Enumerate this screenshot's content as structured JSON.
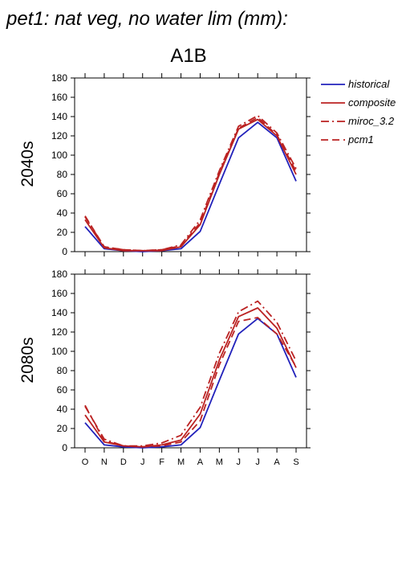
{
  "title": "pet1: nat veg, no water lim (mm):",
  "scenario": "A1B",
  "colors": {
    "historical": "#2222bb",
    "model": "#bb2222",
    "axis": "#000000"
  },
  "chart_data": [
    {
      "type": "line",
      "title": "2040s",
      "ylim": [
        0,
        180
      ],
      "yticks": [
        0,
        20,
        40,
        60,
        80,
        100,
        120,
        140,
        160,
        180
      ],
      "categories": [
        "O",
        "N",
        "D",
        "J",
        "F",
        "M",
        "A",
        "M",
        "J",
        "J",
        "A",
        "S"
      ],
      "series": [
        {
          "name": "historical",
          "style": "solid",
          "color": "#2222bb",
          "values": [
            26,
            3,
            1,
            0,
            1,
            3,
            21,
            70,
            118,
            134,
            118,
            73
          ]
        },
        {
          "name": "composite",
          "style": "solid",
          "color": "#bb2222",
          "values": [
            33,
            4,
            1,
            1,
            1,
            5,
            28,
            80,
            127,
            137,
            120,
            80
          ]
        },
        {
          "name": "miroc_3.2",
          "style": "dashdot",
          "color": "#bb2222",
          "values": [
            36,
            5,
            2,
            1,
            2,
            7,
            33,
            84,
            130,
            141,
            123,
            86
          ]
        },
        {
          "name": "pcm1",
          "style": "dashed",
          "color": "#bb2222",
          "values": [
            37,
            5,
            2,
            1,
            2,
            6,
            30,
            82,
            128,
            139,
            121,
            83
          ]
        }
      ]
    },
    {
      "type": "line",
      "title": "2080s",
      "ylim": [
        0,
        180
      ],
      "yticks": [
        0,
        20,
        40,
        60,
        80,
        100,
        120,
        140,
        160,
        180
      ],
      "categories": [
        "O",
        "N",
        "D",
        "J",
        "F",
        "M",
        "A",
        "M",
        "J",
        "J",
        "A",
        "S"
      ],
      "series": [
        {
          "name": "historical",
          "style": "solid",
          "color": "#2222bb",
          "values": [
            26,
            3,
            1,
            0,
            1,
            3,
            21,
            70,
            118,
            134,
            118,
            73
          ]
        },
        {
          "name": "composite",
          "style": "solid",
          "color": "#bb2222",
          "values": [
            34,
            6,
            2,
            1,
            3,
            8,
            35,
            91,
            136,
            145,
            124,
            83
          ]
        },
        {
          "name": "miroc_3.2",
          "style": "dashdot",
          "color": "#bb2222",
          "values": [
            43,
            9,
            2,
            2,
            5,
            13,
            42,
            98,
            141,
            152,
            130,
            90
          ]
        },
        {
          "name": "pcm1",
          "style": "dashed",
          "color": "#bb2222",
          "values": [
            44,
            7,
            2,
            1,
            2,
            6,
            28,
            86,
            131,
            135,
            118,
            84
          ]
        }
      ]
    }
  ]
}
